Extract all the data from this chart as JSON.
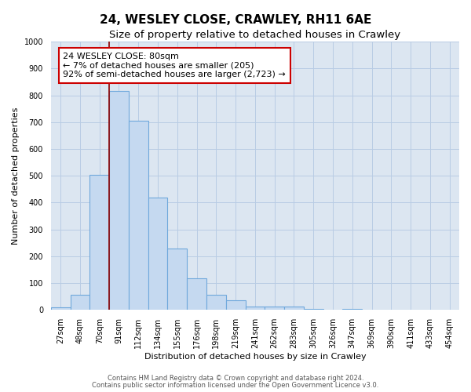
{
  "title": "24, WESLEY CLOSE, CRAWLEY, RH11 6AE",
  "subtitle": "Size of property relative to detached houses in Crawley",
  "xlabel": "Distribution of detached houses by size in Crawley",
  "ylabel": "Number of detached properties",
  "bin_labels": [
    "27sqm",
    "48sqm",
    "70sqm",
    "91sqm",
    "112sqm",
    "134sqm",
    "155sqm",
    "176sqm",
    "198sqm",
    "219sqm",
    "241sqm",
    "262sqm",
    "283sqm",
    "305sqm",
    "326sqm",
    "347sqm",
    "369sqm",
    "390sqm",
    "411sqm",
    "433sqm",
    "454sqm"
  ],
  "bar_values": [
    10,
    57,
    503,
    815,
    705,
    420,
    228,
    118,
    57,
    35,
    12,
    12,
    12,
    5,
    0,
    5,
    0,
    0,
    0,
    0,
    0
  ],
  "bar_color": "#c5d9f0",
  "bar_edge_color": "#6fa8dc",
  "plot_bg_color": "#dce6f1",
  "fig_bg_color": "#ffffff",
  "grid_color": "#b8cce4",
  "vline_color": "#8b0000",
  "annotation_text": "24 WESLEY CLOSE: 80sqm\n← 7% of detached houses are smaller (205)\n92% of semi-detached houses are larger (2,723) →",
  "annotation_box_color": "#ffffff",
  "annotation_box_edge_color": "#cc0000",
  "ylim": [
    0,
    1000
  ],
  "yticks": [
    0,
    100,
    200,
    300,
    400,
    500,
    600,
    700,
    800,
    900,
    1000
  ],
  "footnote1": "Contains HM Land Registry data © Crown copyright and database right 2024.",
  "footnote2": "Contains public sector information licensed under the Open Government Licence v3.0.",
  "title_fontsize": 11,
  "subtitle_fontsize": 9.5,
  "axis_label_fontsize": 8,
  "tick_fontsize": 7,
  "annotation_fontsize": 8,
  "footnote_fontsize": 6
}
